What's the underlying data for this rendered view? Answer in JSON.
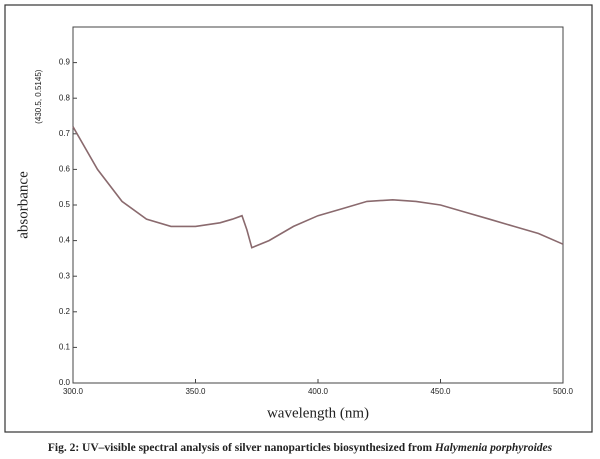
{
  "chart_data": {
    "type": "line",
    "x": [
      300,
      310,
      320,
      330,
      340,
      350,
      360,
      365,
      369,
      371,
      373,
      380,
      390,
      400,
      410,
      420,
      430.5,
      440,
      450,
      460,
      470,
      480,
      490,
      500
    ],
    "values": [
      0.72,
      0.6,
      0.51,
      0.46,
      0.44,
      0.44,
      0.45,
      0.46,
      0.47,
      0.43,
      0.38,
      0.4,
      0.44,
      0.47,
      0.49,
      0.51,
      0.5145,
      0.51,
      0.5,
      0.48,
      0.46,
      0.44,
      0.42,
      0.39
    ],
    "color": "#8a6a6e",
    "xlim": [
      300,
      500
    ],
    "ylim": [
      0,
      1
    ],
    "xticks": [
      {
        "value": 300,
        "label": "300.0"
      },
      {
        "value": 350,
        "label": "350.0"
      },
      {
        "value": 400,
        "label": "400.0"
      },
      {
        "value": 450,
        "label": "450.0"
      },
      {
        "value": 500,
        "label": "500.0"
      }
    ],
    "yticks": [
      {
        "value": 0,
        "label": "0.0"
      },
      0.1,
      0.2,
      0.3,
      0.4,
      0.5,
      0.6,
      0.7,
      0.8,
      0.9
    ],
    "xlabel": "wavelength (nm)",
    "ylabel": "absorbance",
    "annotation": "(430.5, 0.5145)",
    "caption": "Fig. 2: UV–visible spectral analysis of silver nanoparticles biosynthesized from ",
    "caption_species": "Halymenia porphyroides"
  }
}
